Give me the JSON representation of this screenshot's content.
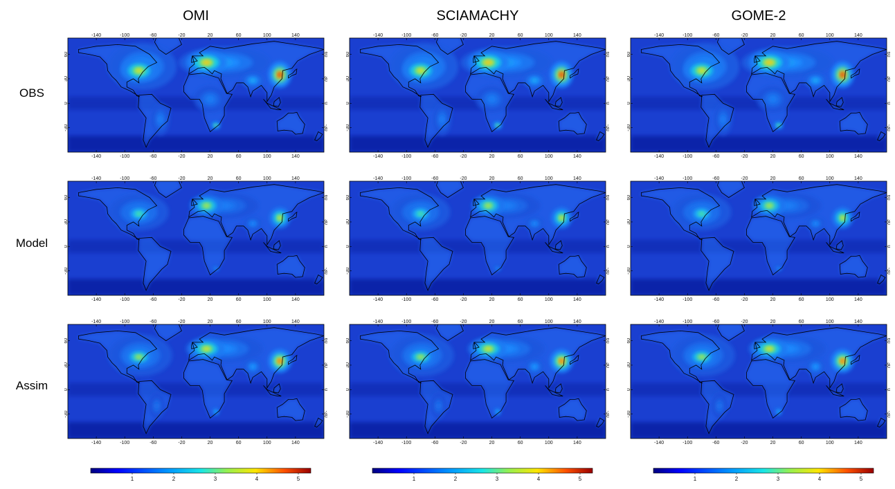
{
  "columns": [
    "OMI",
    "SCIAMACHY",
    "GOME-2"
  ],
  "rows": [
    "OBS",
    "Model",
    "Assim"
  ],
  "map": {
    "lon_ticks": [
      -140,
      -100,
      -60,
      -20,
      20,
      60,
      100,
      140
    ],
    "lat_ticks": [
      60,
      30,
      0,
      -30
    ],
    "lon_range": [
      -180,
      180
    ],
    "lat_range": [
      -60,
      80
    ]
  },
  "colorbar": {
    "ticks": [
      1,
      2,
      3,
      4,
      5
    ],
    "range": [
      0,
      5.3
    ]
  },
  "colors": {
    "background_field": "#1a3fd0",
    "deep": "#00108a",
    "low": "#1a55ff",
    "mid": "#19c8ff",
    "high": "#f0e020",
    "max": "#b30000"
  }
}
